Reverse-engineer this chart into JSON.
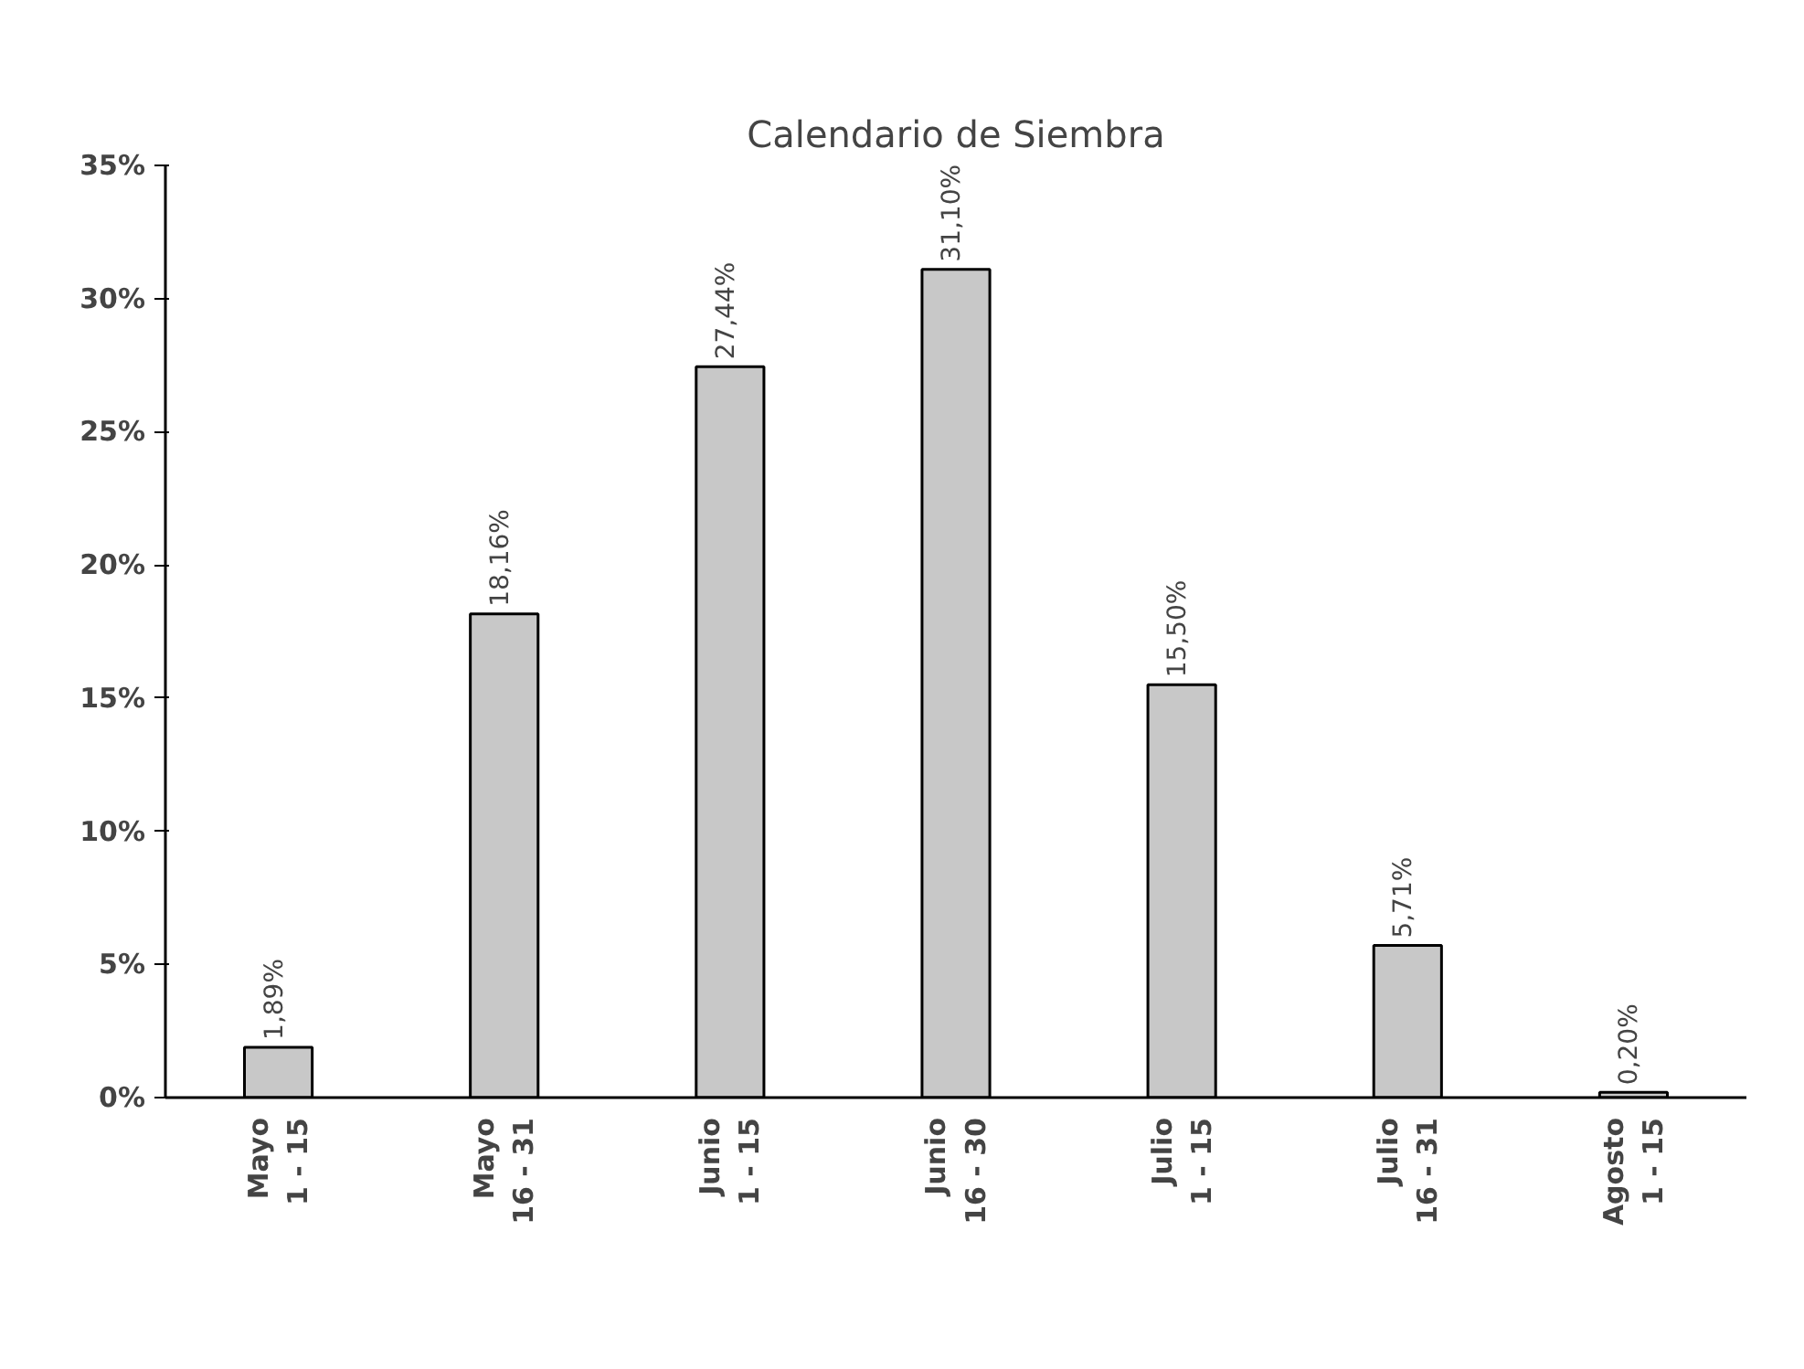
{
  "chart_data": {
    "type": "bar",
    "title": "Calendario de Siembra",
    "categories": [
      "Mayo\n1 - 15",
      "Mayo\n16 - 31",
      "Junio\n1 - 15",
      "Junio\n16 - 30",
      "Julio\n1 - 15",
      "Julio\n16 - 31",
      "Agosto\n1 - 15"
    ],
    "values": [
      1.89,
      18.16,
      27.44,
      31.1,
      15.5,
      5.71,
      0.2
    ],
    "value_labels": [
      "1,89%",
      "18,16%",
      "27,44%",
      "31,10%",
      "15,50%",
      "5,71%",
      "0,20%"
    ],
    "color": "#c8c8c8",
    "ylim": [
      0,
      35
    ],
    "yticks": [
      {
        "value": 0,
        "label": "0%"
      },
      {
        "value": 5,
        "label": "5%"
      },
      {
        "value": 10,
        "label": "10%"
      },
      {
        "value": 15,
        "label": "15%"
      },
      {
        "value": 20,
        "label": "20%"
      },
      {
        "value": 25,
        "label": "25%"
      },
      {
        "value": 30,
        "label": "30%"
      },
      {
        "value": 35,
        "label": "35%"
      }
    ],
    "grid": false
  }
}
